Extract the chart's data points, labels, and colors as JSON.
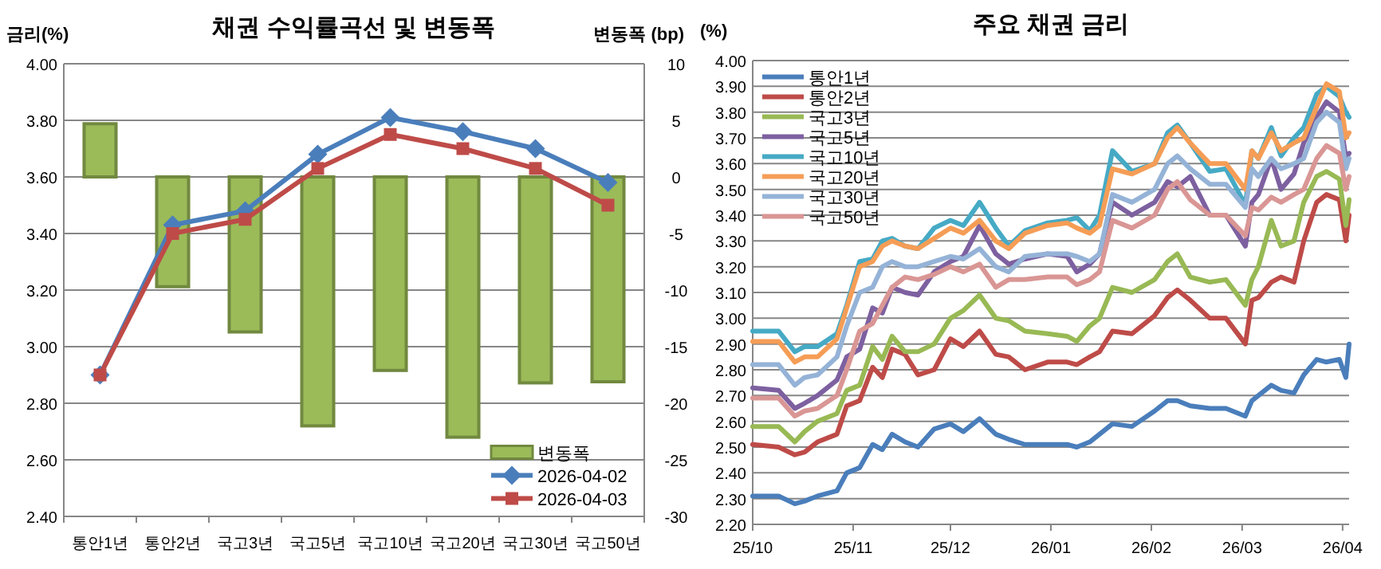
{
  "chart_data": [
    {
      "type": "bar",
      "title": "채권 수익률곡선 및 변동폭",
      "ylabel": "금리(%)",
      "y2label": "변동폭 (bp)",
      "categories": [
        "통안1년",
        "통안2년",
        "국고3년",
        "국고5년",
        "국고10년",
        "국고20년",
        "국고30년",
        "국고50년"
      ],
      "series": [
        {
          "name": "변동폭",
          "axis": "y2",
          "color": "#9bbb59",
          "values": [
            4.7,
            -9.7,
            -13.7,
            -22.0,
            -17.1,
            -23.0,
            -18.2,
            -18.1
          ]
        },
        {
          "name": "2026-04-02",
          "type": "line",
          "marker": "diamond",
          "color": "#4a7ebb",
          "values": [
            2.9,
            3.43,
            3.48,
            3.68,
            3.81,
            3.76,
            3.7,
            3.58
          ]
        },
        {
          "name": "2026-04-03",
          "type": "line",
          "marker": "square",
          "color": "#be4b48",
          "values": [
            2.9,
            3.4,
            3.45,
            3.63,
            3.75,
            3.7,
            3.63,
            3.5
          ]
        }
      ],
      "ylim": [
        2.4,
        4.0
      ],
      "yticks": [
        {
          "value": 2.4,
          "label": "2.40"
        },
        {
          "value": 2.6,
          "label": "2.60"
        },
        {
          "value": 2.8,
          "label": "2.80"
        },
        {
          "value": 3.0,
          "label": "3.00"
        },
        {
          "value": 3.2,
          "label": "3.20"
        },
        {
          "value": 3.4,
          "label": "3.40"
        },
        {
          "value": 3.6,
          "label": "3.60"
        },
        {
          "value": 3.8,
          "label": "3.80"
        },
        {
          "value": 4.0,
          "label": "4.00"
        }
      ],
      "y2lim": [
        -30,
        10
      ],
      "y2ticks": [
        -30,
        -25,
        -20,
        -15,
        -10,
        -5,
        0,
        5,
        10
      ],
      "grid": "y",
      "legend": "bottom right"
    },
    {
      "type": "line",
      "title": "주요 채권 금리",
      "ylabel": "(%)",
      "marker": "none",
      "grid": "y",
      "legend": "top left",
      "x": [
        "2025-10-01",
        "2025-10-09",
        "2025-10-14",
        "2025-10-17",
        "2025-10-21",
        "2025-10-27",
        "2025-10-30",
        "2025-11-03",
        "2025-11-07",
        "2025-11-10",
        "2025-11-13",
        "2025-11-17",
        "2025-11-21",
        "2025-11-26",
        "2025-12-01",
        "2025-12-05",
        "2025-12-10",
        "2025-12-15",
        "2025-12-19",
        "2025-12-24",
        "2025-12-31",
        "2026-01-06",
        "2026-01-09",
        "2026-01-13",
        "2026-01-16",
        "2026-01-20",
        "2026-01-26",
        "2026-02-02",
        "2026-02-06",
        "2026-02-09",
        "2026-02-13",
        "2026-02-19",
        "2026-02-24",
        "2026-03-02",
        "2026-03-04",
        "2026-03-06",
        "2026-03-10",
        "2026-03-13",
        "2026-03-17",
        "2026-03-20",
        "2026-03-24",
        "2026-03-27",
        "2026-03-31",
        "2026-04-02",
        "2026-04-03"
      ],
      "series": [
        {
          "name": "통안1년",
          "color": "#4a7ebb",
          "values": [
            2.31,
            2.31,
            2.28,
            2.29,
            2.31,
            2.33,
            2.4,
            2.42,
            2.51,
            2.49,
            2.55,
            2.52,
            2.5,
            2.57,
            2.59,
            2.56,
            2.61,
            2.55,
            2.53,
            2.51,
            2.51,
            2.51,
            2.5,
            2.52,
            2.55,
            2.59,
            2.58,
            2.64,
            2.68,
            2.68,
            2.66,
            2.65,
            2.65,
            2.62,
            2.68,
            2.7,
            2.74,
            2.72,
            2.71,
            2.78,
            2.84,
            2.83,
            2.84,
            2.77,
            2.9
          ]
        },
        {
          "name": "통안2년",
          "color": "#be4b48",
          "values": [
            2.51,
            2.5,
            2.47,
            2.48,
            2.52,
            2.55,
            2.66,
            2.68,
            2.81,
            2.77,
            2.88,
            2.86,
            2.78,
            2.8,
            2.92,
            2.89,
            2.95,
            2.86,
            2.85,
            2.8,
            2.83,
            2.83,
            2.82,
            2.85,
            2.87,
            2.95,
            2.94,
            3.01,
            3.08,
            3.11,
            3.07,
            3.0,
            3.0,
            2.9,
            3.07,
            3.08,
            3.14,
            3.16,
            3.14,
            3.3,
            3.45,
            3.48,
            3.46,
            3.3,
            3.4
          ]
        },
        {
          "name": "국고3년",
          "color": "#98b954",
          "values": [
            2.58,
            2.58,
            2.52,
            2.56,
            2.6,
            2.63,
            2.72,
            2.74,
            2.89,
            2.84,
            2.93,
            2.87,
            2.87,
            2.9,
            3.0,
            3.03,
            3.09,
            3.0,
            2.99,
            2.95,
            2.94,
            2.93,
            2.91,
            2.97,
            3.0,
            3.12,
            3.1,
            3.15,
            3.22,
            3.25,
            3.16,
            3.14,
            3.15,
            3.05,
            3.15,
            3.2,
            3.38,
            3.28,
            3.3,
            3.45,
            3.55,
            3.57,
            3.54,
            3.36,
            3.46
          ]
        },
        {
          "name": "국고5년",
          "color": "#7d60a0",
          "values": [
            2.73,
            2.72,
            2.65,
            2.67,
            2.7,
            2.76,
            2.85,
            2.88,
            3.04,
            3.02,
            3.12,
            3.1,
            3.09,
            3.18,
            3.22,
            3.24,
            3.36,
            3.25,
            3.21,
            3.23,
            3.25,
            3.24,
            3.18,
            3.21,
            3.25,
            3.45,
            3.4,
            3.45,
            3.53,
            3.51,
            3.55,
            3.4,
            3.4,
            3.28,
            3.45,
            3.48,
            3.62,
            3.5,
            3.56,
            3.68,
            3.78,
            3.84,
            3.8,
            3.62,
            3.64
          ]
        },
        {
          "name": "국고10년",
          "color": "#46aac5",
          "values": [
            2.95,
            2.95,
            2.87,
            2.89,
            2.89,
            2.94,
            3.05,
            3.22,
            3.23,
            3.3,
            3.31,
            3.28,
            3.27,
            3.35,
            3.38,
            3.36,
            3.45,
            3.35,
            3.28,
            3.34,
            3.37,
            3.38,
            3.39,
            3.34,
            3.4,
            3.65,
            3.57,
            3.6,
            3.72,
            3.75,
            3.68,
            3.57,
            3.58,
            3.44,
            3.65,
            3.62,
            3.74,
            3.63,
            3.7,
            3.74,
            3.87,
            3.9,
            3.86,
            3.8,
            3.78
          ]
        },
        {
          "name": "국고20년",
          "color": "#f59d56",
          "values": [
            2.91,
            2.91,
            2.83,
            2.85,
            2.85,
            2.92,
            3.04,
            3.2,
            3.22,
            3.28,
            3.3,
            3.28,
            3.27,
            3.31,
            3.35,
            3.33,
            3.38,
            3.3,
            3.27,
            3.33,
            3.36,
            3.37,
            3.35,
            3.33,
            3.36,
            3.58,
            3.56,
            3.6,
            3.7,
            3.74,
            3.68,
            3.6,
            3.6,
            3.5,
            3.65,
            3.62,
            3.72,
            3.65,
            3.68,
            3.7,
            3.82,
            3.91,
            3.88,
            3.7,
            3.72
          ]
        },
        {
          "name": "국고30년",
          "color": "#95b3d7",
          "values": [
            2.82,
            2.82,
            2.74,
            2.77,
            2.78,
            2.85,
            2.97,
            3.1,
            3.12,
            3.2,
            3.22,
            3.2,
            3.2,
            3.22,
            3.24,
            3.23,
            3.27,
            3.2,
            3.18,
            3.24,
            3.25,
            3.25,
            3.24,
            3.22,
            3.25,
            3.48,
            3.45,
            3.5,
            3.6,
            3.63,
            3.58,
            3.52,
            3.52,
            3.43,
            3.58,
            3.55,
            3.62,
            3.58,
            3.6,
            3.62,
            3.76,
            3.8,
            3.76,
            3.58,
            3.62
          ]
        },
        {
          "name": "국고50년",
          "color": "#d99694",
          "values": [
            2.69,
            2.69,
            2.62,
            2.64,
            2.65,
            2.7,
            2.8,
            2.95,
            2.98,
            3.05,
            3.12,
            3.16,
            3.15,
            3.17,
            3.2,
            3.18,
            3.21,
            3.12,
            3.15,
            3.15,
            3.16,
            3.16,
            3.13,
            3.15,
            3.18,
            3.38,
            3.35,
            3.4,
            3.5,
            3.53,
            3.46,
            3.4,
            3.4,
            3.32,
            3.43,
            3.42,
            3.47,
            3.45,
            3.48,
            3.5,
            3.62,
            3.67,
            3.64,
            3.5,
            3.55
          ]
        }
      ],
      "xlim": [
        "2025-10-01",
        "2026-04-03"
      ],
      "xticks": [
        {
          "value": "2025-10-01",
          "label": "25/10"
        },
        {
          "value": "2025-11-01",
          "label": "25/11"
        },
        {
          "value": "2025-12-01",
          "label": "25/12"
        },
        {
          "value": "2026-01-01",
          "label": "26/01"
        },
        {
          "value": "2026-02-01",
          "label": "26/02"
        },
        {
          "value": "2026-03-01",
          "label": "26/03"
        },
        {
          "value": "2026-04-01",
          "label": "26/04"
        }
      ],
      "ylim": [
        2.2,
        4.0
      ],
      "yticks": [
        {
          "value": 2.2,
          "label": "2.20"
        },
        {
          "value": 2.3,
          "label": "2.30"
        },
        {
          "value": 2.4,
          "label": "2.40"
        },
        {
          "value": 2.5,
          "label": "2.50"
        },
        {
          "value": 2.6,
          "label": "2.60"
        },
        {
          "value": 2.7,
          "label": "2.70"
        },
        {
          "value": 2.8,
          "label": "2.80"
        },
        {
          "value": 2.9,
          "label": "2.90"
        },
        {
          "value": 3.0,
          "label": "3.00"
        },
        {
          "value": 3.1,
          "label": "3.10"
        },
        {
          "value": 3.2,
          "label": "3.20"
        },
        {
          "value": 3.3,
          "label": "3.30"
        },
        {
          "value": 3.4,
          "label": "3.40"
        },
        {
          "value": 3.5,
          "label": "3.50"
        },
        {
          "value": 3.6,
          "label": "3.60"
        },
        {
          "value": 3.7,
          "label": "3.70"
        },
        {
          "value": 3.8,
          "label": "3.80"
        },
        {
          "value": 3.9,
          "label": "3.90"
        },
        {
          "value": 4.0,
          "label": "4.00"
        }
      ]
    }
  ]
}
